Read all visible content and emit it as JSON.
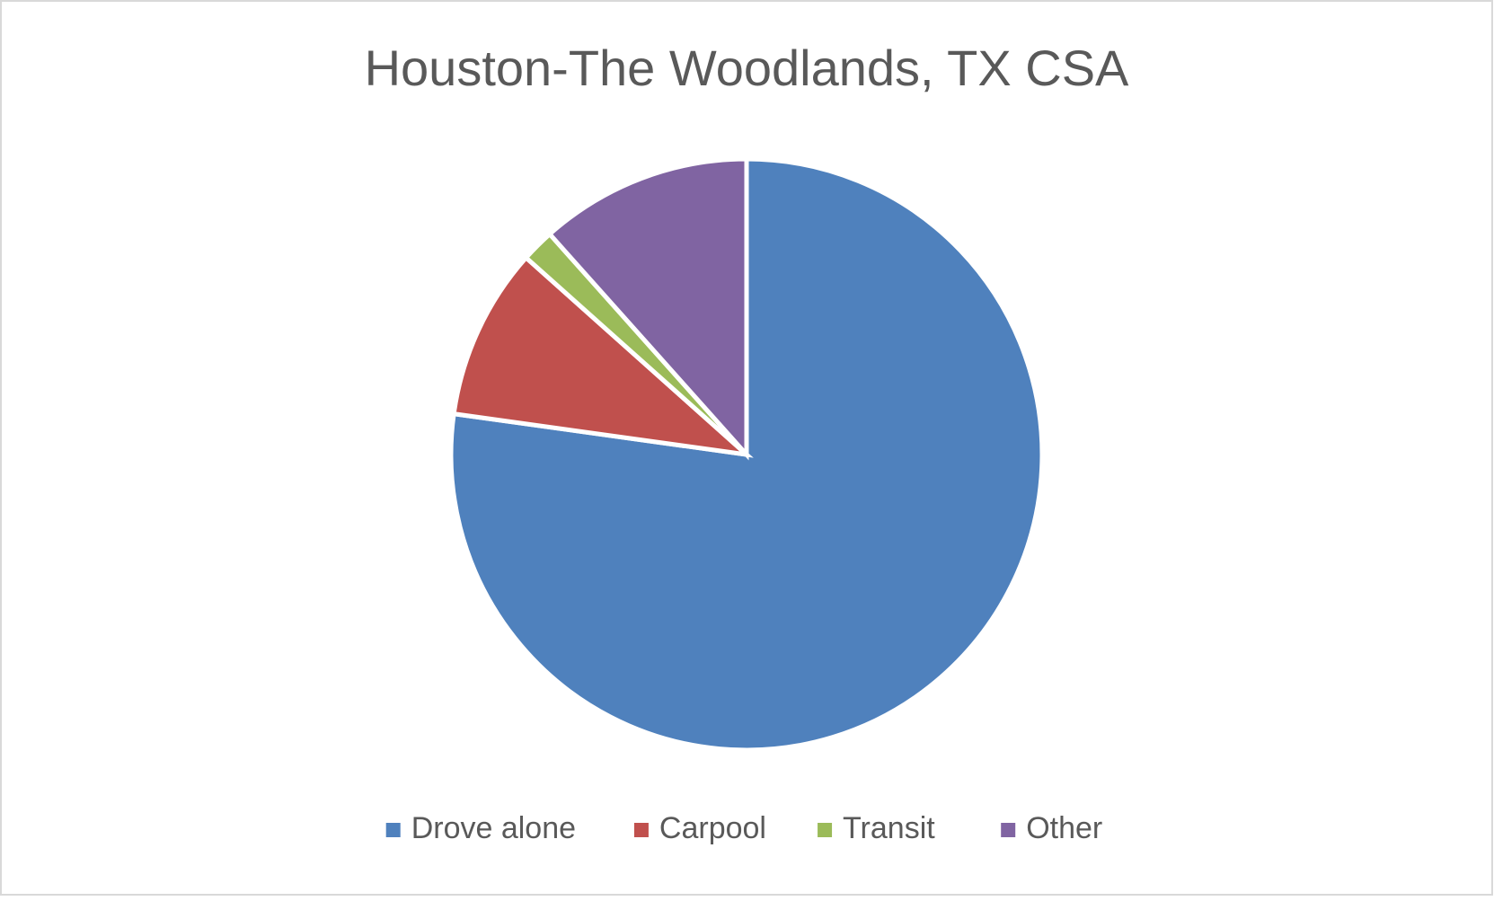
{
  "chart_data": {
    "type": "pie",
    "title": "Houston-The Woodlands, TX CSA",
    "categories": [
      "Drove alone",
      "Carpool",
      "Transit",
      "Other"
    ],
    "values": [
      77.2,
      9.4,
      1.8,
      11.6
    ],
    "colors": [
      "#4f81bd",
      "#c0504d",
      "#9bbb59",
      "#8064a2"
    ],
    "legend": "bottom"
  }
}
